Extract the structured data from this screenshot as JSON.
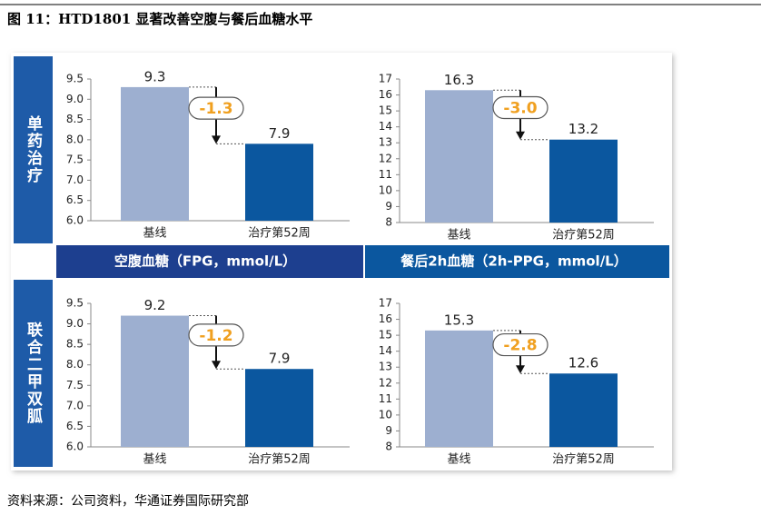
{
  "title": "图 11：HTD1801 显著改善空腹与餐后血糖水平",
  "source": "资料来源：公司资料，华通证券国际研究部",
  "row_labels": [
    "单药治疗",
    "联合二甲双胍"
  ],
  "column_labels": [
    "空腹血糖（FPG，mmol/L）",
    "餐后2h血糖（2h-PPG，mmol/L）"
  ],
  "chart_data": [
    {
      "type": "bar",
      "categories": [
        "基线",
        "治疗第52周"
      ],
      "values": [
        9.3,
        7.9
      ],
      "colors": [
        "#9dafd0",
        "#0b579f"
      ],
      "ylim": [
        6,
        9.5
      ],
      "yticks": [
        {
          "value": 6,
          "label": "6.0"
        },
        6.5,
        {
          "value": 7,
          "label": "7.0"
        },
        7.5,
        {
          "value": 8,
          "label": "8.0"
        },
        8.5,
        {
          "value": 9,
          "label": "9.0"
        },
        9.5
      ],
      "annotation": "-1.3"
    },
    {
      "type": "bar",
      "categories": [
        "基线",
        "治疗第52周"
      ],
      "values": [
        16.3,
        13.2
      ],
      "colors": [
        "#9dafd0",
        "#0b579f"
      ],
      "ylim": [
        8,
        17
      ],
      "yticks": [
        8,
        9,
        10,
        11,
        12,
        13,
        14,
        15,
        16,
        17
      ],
      "annotation": "-3.0"
    },
    {
      "type": "bar",
      "categories": [
        "基线",
        "治疗第52周"
      ],
      "values": [
        9.2,
        7.9
      ],
      "colors": [
        "#9dafd0",
        "#0b579f"
      ],
      "ylim": [
        6,
        9.5
      ],
      "yticks": [
        {
          "value": 6,
          "label": "6.0"
        },
        6.5,
        {
          "value": 7,
          "label": "7.0"
        },
        7.5,
        {
          "value": 8,
          "label": "8.0"
        },
        8.5,
        {
          "value": 9,
          "label": "9.0"
        },
        9.5
      ],
      "annotation": "-1.2"
    },
    {
      "type": "bar",
      "categories": [
        "基线",
        "治疗第52周"
      ],
      "values": [
        15.3,
        12.6
      ],
      "colors": [
        "#9dafd0",
        "#0b579f"
      ],
      "ylim": [
        8,
        17
      ],
      "yticks": [
        8,
        9,
        10,
        11,
        12,
        13,
        14,
        15,
        16,
        17
      ],
      "annotation": "-2.8"
    }
  ]
}
